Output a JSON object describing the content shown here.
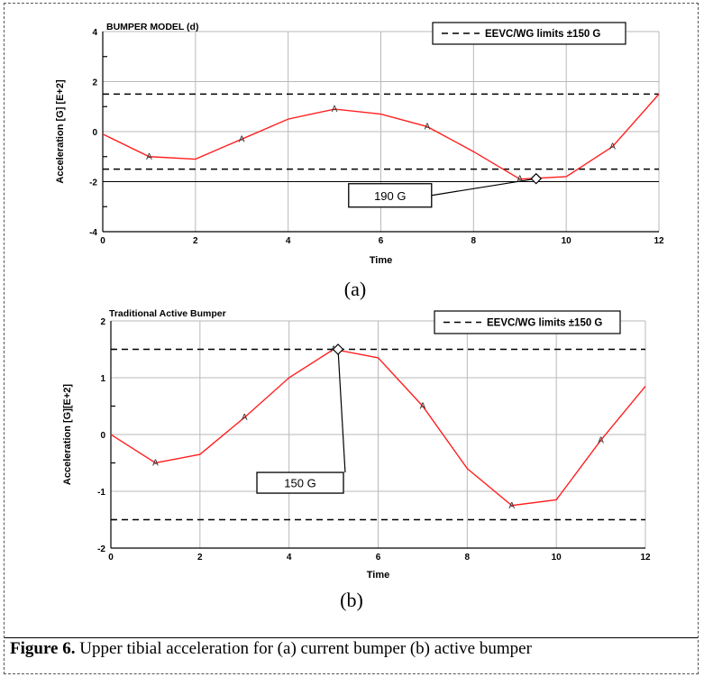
{
  "chart_data": [
    {
      "type": "line",
      "panel_label": "(a)",
      "title": "BUMPER MODEL (d)",
      "xlabel": "Time",
      "ylabel": "Acceleration [G] [E+2]",
      "xlim": [
        0,
        12
      ],
      "ylim": [
        -4,
        4
      ],
      "xticks": [
        0,
        2,
        4,
        6,
        8,
        10,
        12
      ],
      "yticks": [
        -4,
        -2,
        0,
        2,
        4
      ],
      "grid": true,
      "legend": {
        "position": "top-right",
        "label": "EEVC/WG limits ±150 G"
      },
      "limit_lines": [
        1.5,
        -1.5
      ],
      "reference_line": -2,
      "series": [
        {
          "marker_label": "A",
          "x": [
            0,
            1,
            2,
            3,
            4,
            5,
            6,
            7,
            8,
            9,
            10,
            11,
            12
          ],
          "y": [
            -0.1,
            -1.0,
            -1.1,
            -0.3,
            0.5,
            0.9,
            0.7,
            0.2,
            -0.8,
            -1.9,
            -1.8,
            -0.6,
            1.5
          ]
        }
      ],
      "marker_x": [
        1,
        3,
        5,
        7,
        9,
        11
      ],
      "peak_point": {
        "x": 9.35,
        "y": -1.88
      },
      "annotation": {
        "text": "190 G",
        "x": 6.2,
        "y": -2.55
      }
    },
    {
      "type": "line",
      "panel_label": "(b)",
      "title": "Traditional Active Bumper",
      "xlabel": "Time",
      "ylabel": "Acceleration [G][E+2]",
      "xlim": [
        0,
        12
      ],
      "ylim": [
        -2,
        2
      ],
      "xticks": [
        0,
        2,
        4,
        6,
        8,
        10,
        12
      ],
      "yticks": [
        -2,
        -1,
        0,
        1,
        2
      ],
      "grid": true,
      "legend": {
        "position": "top-right",
        "label": "EEVC/WG limits ±150 G"
      },
      "limit_lines": [
        1.5,
        -1.5
      ],
      "series": [
        {
          "marker_label": "A",
          "x": [
            0,
            1,
            2,
            3,
            4,
            5,
            6,
            7,
            8,
            9,
            10,
            11,
            12
          ],
          "y": [
            0,
            -0.5,
            -0.35,
            0.3,
            1.0,
            1.5,
            1.35,
            0.5,
            -0.6,
            -1.25,
            -1.15,
            -0.1,
            0.85
          ]
        }
      ],
      "marker_x": [
        1,
        3,
        5,
        7,
        9,
        11
      ],
      "peak_point": {
        "x": 5.1,
        "y": 1.5
      },
      "annotation": {
        "text": "150 G",
        "x": 4.25,
        "y": -0.85
      }
    }
  ],
  "caption": {
    "label": "Figure 6.",
    "text": " Upper tibial acceleration for (a) current bumper (b) active bumper"
  },
  "colors": {
    "series": "#ff2020",
    "grid": "#b9b9b9",
    "text": "#000000"
  }
}
